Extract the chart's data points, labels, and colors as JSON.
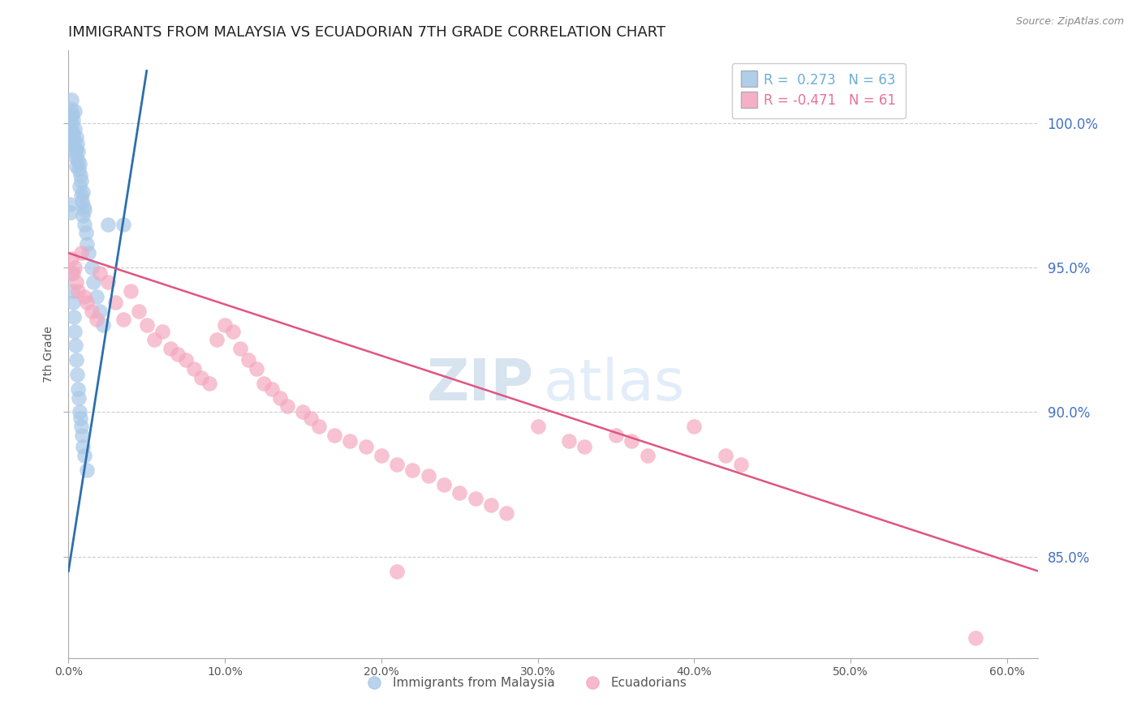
{
  "title": "IMMIGRANTS FROM MALAYSIA VS ECUADORIAN 7TH GRADE CORRELATION CHART",
  "source": "Source: ZipAtlas.com",
  "ylabel": "7th Grade",
  "x_tick_labels": [
    "0.0%",
    "10.0%",
    "20.0%",
    "30.0%",
    "40.0%",
    "50.0%",
    "60.0%"
  ],
  "x_tick_values": [
    0.0,
    10.0,
    20.0,
    30.0,
    40.0,
    50.0,
    60.0
  ],
  "y_tick_labels": [
    "85.0%",
    "90.0%",
    "95.0%",
    "100.0%"
  ],
  "y_tick_values": [
    85.0,
    90.0,
    95.0,
    100.0
  ],
  "xlim": [
    0.0,
    62.0
  ],
  "ylim": [
    81.5,
    102.5
  ],
  "legend_entries": [
    {
      "label": "R =  0.273   N = 63",
      "color": "#6baed6"
    },
    {
      "label": "R = -0.471   N = 61",
      "color": "#e8729a"
    }
  ],
  "legend_labels_bottom": [
    "Immigrants from Malaysia",
    "Ecuadorians"
  ],
  "blue_line_x": [
    0.0,
    5.0
  ],
  "blue_line_y": [
    84.5,
    101.8
  ],
  "pink_line_x": [
    0.0,
    62.0
  ],
  "pink_line_y": [
    95.5,
    84.5
  ],
  "blue_scatter_x": [
    0.1,
    0.15,
    0.15,
    0.2,
    0.2,
    0.2,
    0.25,
    0.25,
    0.3,
    0.3,
    0.3,
    0.35,
    0.4,
    0.4,
    0.4,
    0.45,
    0.5,
    0.5,
    0.5,
    0.55,
    0.6,
    0.6,
    0.65,
    0.7,
    0.7,
    0.75,
    0.8,
    0.8,
    0.85,
    0.9,
    0.9,
    0.95,
    1.0,
    1.0,
    1.1,
    1.2,
    1.3,
    1.5,
    1.6,
    1.8,
    2.0,
    2.2,
    2.5,
    0.1,
    0.15,
    0.2,
    0.25,
    0.3,
    0.35,
    0.4,
    0.45,
    0.5,
    0.55,
    0.6,
    0.65,
    0.7,
    0.75,
    0.8,
    0.85,
    0.9,
    1.0,
    1.2,
    3.5
  ],
  "blue_scatter_y": [
    100.2,
    100.5,
    99.8,
    100.0,
    99.5,
    100.8,
    99.7,
    100.3,
    99.2,
    99.6,
    100.1,
    99.4,
    99.0,
    99.8,
    100.4,
    98.8,
    99.1,
    99.5,
    98.5,
    99.3,
    98.7,
    99.0,
    98.4,
    98.6,
    97.8,
    98.2,
    97.5,
    98.0,
    97.3,
    97.6,
    96.8,
    97.1,
    96.5,
    97.0,
    96.2,
    95.8,
    95.5,
    95.0,
    94.5,
    94.0,
    93.5,
    93.0,
    96.5,
    97.2,
    96.9,
    94.8,
    94.2,
    93.8,
    93.3,
    92.8,
    92.3,
    91.8,
    91.3,
    90.8,
    90.5,
    90.0,
    89.8,
    89.5,
    89.2,
    88.8,
    88.5,
    88.0,
    96.5
  ],
  "pink_scatter_x": [
    0.2,
    0.3,
    0.4,
    0.5,
    0.6,
    0.8,
    1.0,
    1.2,
    1.5,
    1.8,
    2.0,
    2.5,
    3.0,
    3.5,
    4.0,
    4.5,
    5.0,
    5.5,
    6.0,
    6.5,
    7.0,
    7.5,
    8.0,
    8.5,
    9.0,
    9.5,
    10.0,
    10.5,
    11.0,
    11.5,
    12.0,
    12.5,
    13.0,
    13.5,
    14.0,
    15.0,
    15.5,
    16.0,
    17.0,
    18.0,
    19.0,
    20.0,
    21.0,
    22.0,
    23.0,
    24.0,
    25.0,
    26.0,
    27.0,
    28.0,
    30.0,
    32.0,
    33.0,
    35.0,
    36.0,
    37.0,
    40.0,
    42.0,
    43.0,
    58.0,
    21.0
  ],
  "pink_scatter_y": [
    95.3,
    94.8,
    95.0,
    94.5,
    94.2,
    95.5,
    94.0,
    93.8,
    93.5,
    93.2,
    94.8,
    94.5,
    93.8,
    93.2,
    94.2,
    93.5,
    93.0,
    92.5,
    92.8,
    92.2,
    92.0,
    91.8,
    91.5,
    91.2,
    91.0,
    92.5,
    93.0,
    92.8,
    92.2,
    91.8,
    91.5,
    91.0,
    90.8,
    90.5,
    90.2,
    90.0,
    89.8,
    89.5,
    89.2,
    89.0,
    88.8,
    88.5,
    88.2,
    88.0,
    87.8,
    87.5,
    87.2,
    87.0,
    86.8,
    86.5,
    89.5,
    89.0,
    88.8,
    89.2,
    89.0,
    88.5,
    89.5,
    88.5,
    88.2,
    82.2,
    84.5
  ],
  "watermark_zip": "ZIP",
  "watermark_atlas": "atlas",
  "blue_color": "#a8c8e8",
  "blue_color_line": "#2c6fad",
  "pink_color": "#f5a8c0",
  "pink_color_line": "#e05580",
  "background_color": "#ffffff",
  "right_axis_color": "#4472c4",
  "grid_color": "#cccccc",
  "title_fontsize": 13,
  "axis_label_fontsize": 10,
  "tick_fontsize": 10,
  "legend_fontsize": 11
}
